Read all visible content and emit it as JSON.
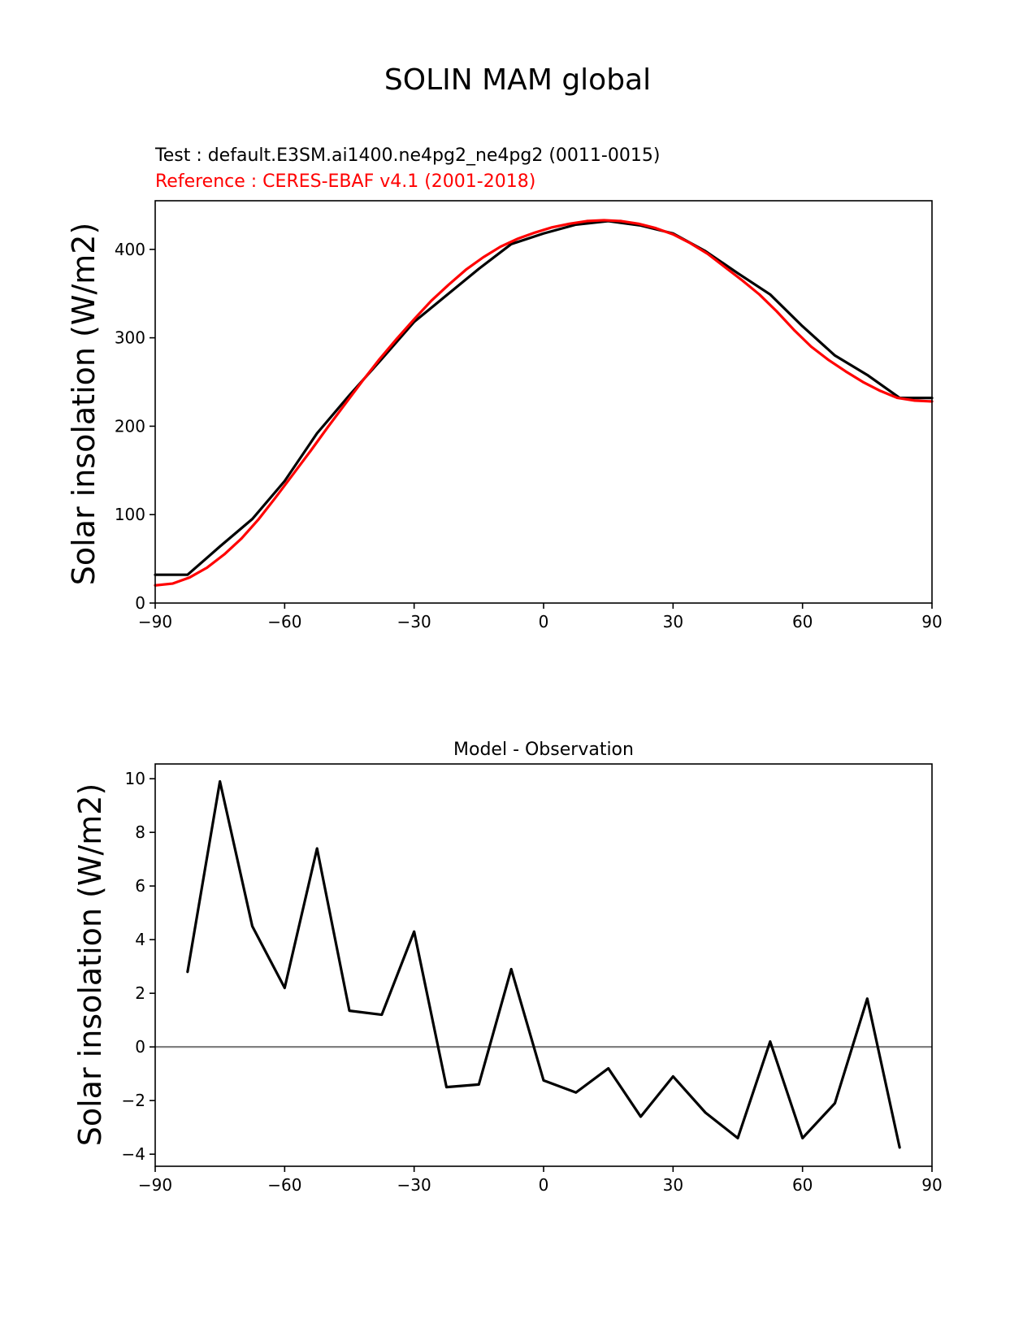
{
  "figure_title": "SOLIN MAM global",
  "chart_data": [
    {
      "type": "line",
      "test_label": "Test : default.E3SM.ai1400.ne4pg2_ne4pg2 (0011-0015)",
      "reference_label": "Reference : CERES-EBAF v4.1 (2001-2018)",
      "ylabel": "Solar insolation (W/m2)",
      "xlim": [
        -90,
        90
      ],
      "ylim": [
        0,
        455
      ],
      "xticks": [
        -90,
        -60,
        -30,
        0,
        30,
        60,
        90
      ],
      "xtick_labels": [
        "−90",
        "−60",
        "−30",
        "0",
        "30",
        "60",
        "90"
      ],
      "yticks": [
        0,
        100,
        200,
        300,
        400
      ],
      "ytick_labels": [
        "0",
        "100",
        "200",
        "300",
        "400"
      ],
      "series": [
        {
          "color": "#000000",
          "x": [
            -90,
            -82.5,
            -75,
            -67.5,
            -60,
            -52.5,
            -45,
            -37.5,
            -30,
            -22.5,
            -15,
            -7.5,
            0,
            7.5,
            15,
            22.5,
            30,
            37.5,
            45,
            52.5,
            60,
            67.5,
            75,
            82.5,
            90
          ],
          "y": [
            32,
            32,
            64,
            95,
            138,
            192,
            235,
            276,
            318,
            348,
            378,
            406,
            418,
            428,
            432,
            427,
            418,
            398,
            373,
            349,
            313,
            280,
            258,
            232,
            232
          ]
        },
        {
          "color": "#ff0000",
          "x": [
            -90,
            -86,
            -82,
            -78,
            -74,
            -70,
            -66,
            -62,
            -58,
            -54,
            -50,
            -46,
            -42,
            -38,
            -34,
            -30,
            -26,
            -22,
            -18,
            -14,
            -10,
            -6,
            -2,
            2,
            6,
            10,
            14,
            18,
            22,
            26,
            30,
            34,
            38,
            42,
            46,
            50,
            54,
            58,
            62,
            66,
            70,
            74,
            78,
            82,
            86,
            90
          ],
          "y": [
            20,
            22,
            29,
            40,
            55,
            73,
            95,
            120,
            146,
            172,
            199,
            225,
            251,
            276,
            299,
            321,
            342,
            360,
            377,
            391,
            403,
            412,
            419,
            425,
            429,
            432,
            433,
            432,
            429,
            424,
            417,
            407,
            395,
            380,
            365,
            349,
            330,
            309,
            290,
            275,
            262,
            250,
            240,
            232,
            229,
            228
          ]
        }
      ]
    },
    {
      "type": "line",
      "title": "Model - Observation",
      "ylabel": "Solar insolation (W/m2)",
      "xlim": [
        -90,
        90
      ],
      "ylim": [
        -4.45,
        10.55
      ],
      "xticks": [
        -90,
        -60,
        -30,
        0,
        30,
        60,
        90
      ],
      "xtick_labels": [
        "−90",
        "−60",
        "−30",
        "0",
        "30",
        "60",
        "90"
      ],
      "yticks": [
        -4,
        -2,
        0,
        2,
        4,
        6,
        8,
        10
      ],
      "ytick_labels": [
        "−4",
        "−2",
        "0",
        "2",
        "4",
        "6",
        "8",
        "10"
      ],
      "zero_line_color": "#808080",
      "series": [
        {
          "color": "#000000",
          "x": [
            -82.5,
            -75,
            -67.5,
            -60,
            -52.5,
            -45,
            -37.5,
            -30,
            -22.5,
            -15,
            -7.5,
            0,
            7.5,
            15,
            22.5,
            30,
            37.5,
            45,
            52.5,
            60,
            67.5,
            75,
            82.5
          ],
          "y": [
            2.8,
            9.9,
            4.5,
            2.2,
            7.4,
            1.35,
            1.2,
            4.3,
            -1.5,
            -1.4,
            2.9,
            -1.25,
            -1.7,
            -0.8,
            -2.6,
            -1.1,
            -2.45,
            -3.4,
            0.2,
            -3.4,
            -2.1,
            1.8,
            -3.75
          ]
        }
      ]
    }
  ]
}
